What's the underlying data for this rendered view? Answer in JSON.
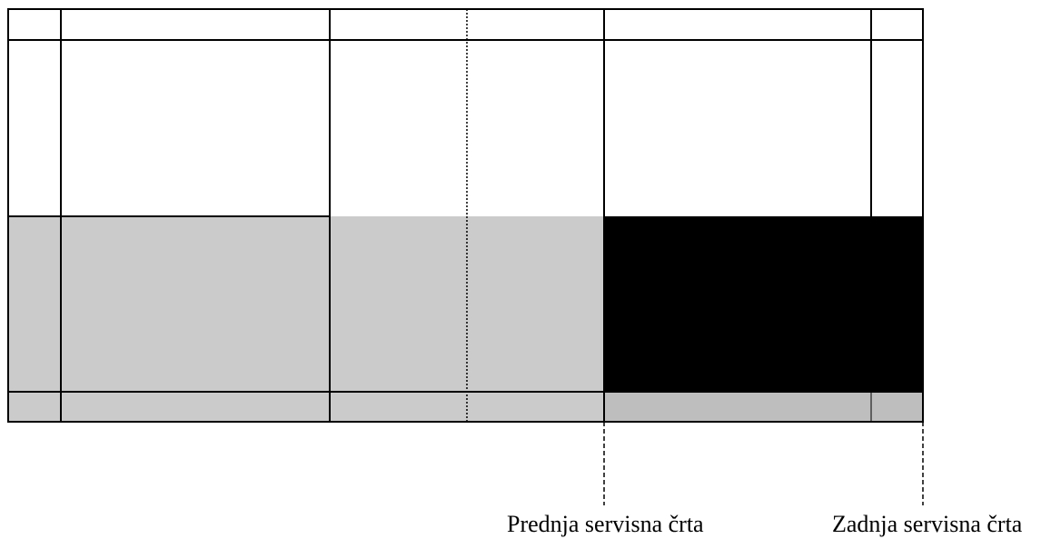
{
  "colors": {
    "background": "#ffffff",
    "line": "#000000",
    "grey_zone": "#cbcbcb",
    "grey_strip": "#bebebe",
    "black_zone": "#000000"
  },
  "labels": {
    "front_service_line": "Prednja servisna črta",
    "back_service_line": "Zadnja servisna črta"
  }
}
